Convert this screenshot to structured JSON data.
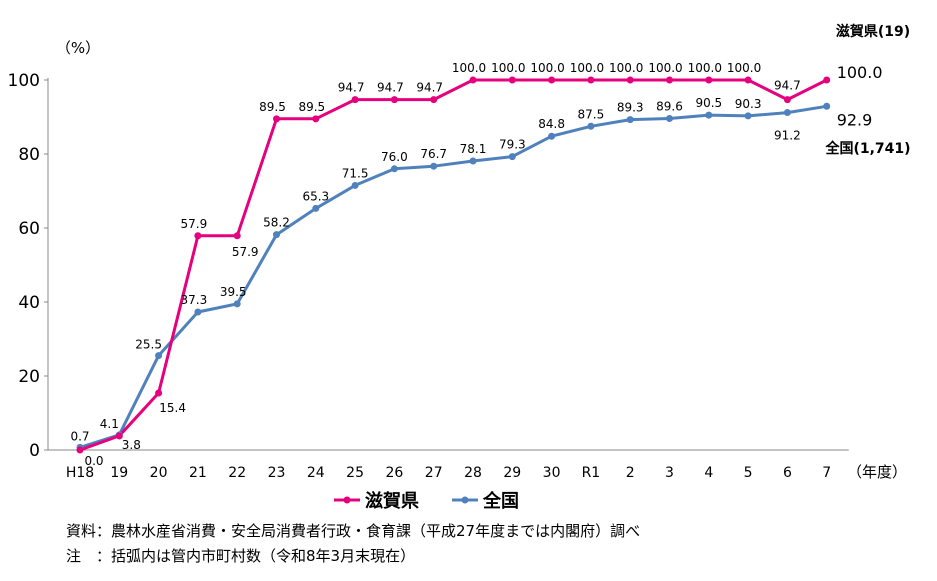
{
  "chart_data": {
    "type": "line",
    "ylabel": "（%）",
    "xlabel": "（年度）",
    "ylim": [
      0,
      100
    ],
    "yticks": [
      0,
      20,
      40,
      60,
      80,
      100
    ],
    "grid": false,
    "legend_position": "bottom",
    "categories": [
      "H18",
      "19",
      "20",
      "21",
      "22",
      "23",
      "24",
      "25",
      "26",
      "27",
      "28",
      "29",
      "30",
      "R1",
      "2",
      "3",
      "4",
      "5",
      "6",
      "7"
    ],
    "series": [
      {
        "name": "滋賀県",
        "color": "#E6007E",
        "values": [
          0.0,
          3.8,
          15.4,
          57.9,
          57.9,
          89.5,
          89.5,
          94.7,
          94.7,
          94.7,
          100.0,
          100.0,
          100.0,
          100.0,
          100.0,
          100.0,
          100.0,
          100.0,
          94.7,
          100.0
        ],
        "labels": [
          "0.0",
          "3.8",
          "15.4",
          "57.9",
          "57.9",
          "89.5",
          "89.5",
          "94.7",
          "94.7",
          "94.7",
          "100.0",
          "100.0",
          "100.0",
          "100.0",
          "100.0",
          "100.0",
          "100.0",
          "100.0",
          "94.7",
          "100.0"
        ],
        "end_annotation": "滋賀県(19)"
      },
      {
        "name": "全国",
        "color": "#4F81BD",
        "values": [
          0.7,
          4.1,
          25.5,
          37.3,
          39.5,
          58.2,
          65.3,
          71.5,
          76.0,
          76.7,
          78.1,
          79.3,
          84.8,
          87.5,
          89.3,
          89.6,
          90.5,
          90.3,
          91.2,
          92.9
        ],
        "labels": [
          "0.7",
          "4.1",
          "25.5",
          "37.3",
          "39.5",
          "58.2",
          "65.3",
          "71.5",
          "76.0",
          "76.7",
          "78.1",
          "79.3",
          "84.8",
          "87.5",
          "89.3",
          "89.6",
          "90.5",
          "90.3",
          "91.2",
          "92.9"
        ],
        "end_annotation": "全国(1,741)"
      }
    ]
  },
  "notes": {
    "source": "資料：農林水産省消費・安全局消費者行政・食育課（平成27年度までは内閣府）調べ",
    "note": "注　：括弧内は管内市町村数（令和8年3月末現在）"
  }
}
